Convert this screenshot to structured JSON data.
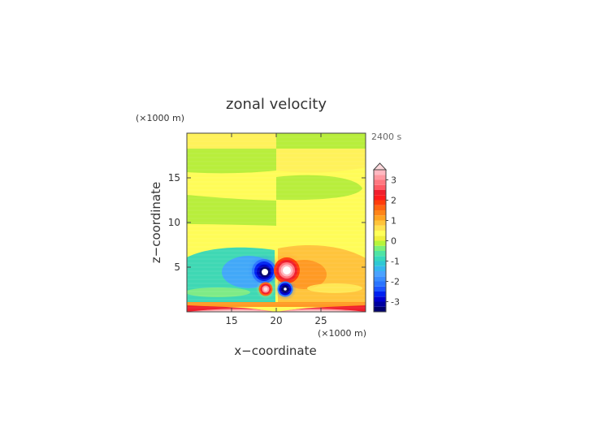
{
  "chart_data": {
    "type": "heatmap",
    "title": "zonal velocity",
    "time_label": "2400 s",
    "xlabel": "x−coordinate",
    "ylabel": "z−coordinate",
    "x_unit": "(×1000 m)",
    "y_unit": "(×1000 m)",
    "xlim": [
      10,
      30
    ],
    "ylim": [
      0,
      20
    ],
    "x_ticks": [
      15,
      20,
      25
    ],
    "y_ticks": [
      5,
      10,
      15
    ],
    "colorbar": {
      "ticks": [
        3,
        2,
        1,
        0,
        -1,
        -2,
        -3
      ],
      "levels": [
        -3.5,
        -3.25,
        -3.0,
        -2.75,
        -2.5,
        -2.25,
        -2.0,
        -1.75,
        -1.5,
        -1.25,
        -1.0,
        -0.75,
        -0.5,
        -0.25,
        0.0,
        0.25,
        0.5,
        0.75,
        1.0,
        1.25,
        1.5,
        1.75,
        2.0,
        2.25,
        2.5,
        2.75,
        3.0,
        3.25,
        3.5
      ],
      "colors": [
        "#00006e",
        "#0000a0",
        "#0000d0",
        "#0020f0",
        "#1c54ff",
        "#2a74ff",
        "#3a8cff",
        "#4aa2ff",
        "#36b6f0",
        "#2ec8d4",
        "#36d8bc",
        "#4ee4a4",
        "#7af07a",
        "#b6f43a",
        "#f0f03c",
        "#ffff58",
        "#ffe250",
        "#ffc43a",
        "#ffa420",
        "#ff8418",
        "#ff6410",
        "#ff3c0a",
        "#ff1a1a",
        "#f01e2c",
        "#ff5a64",
        "#ff7880",
        "#ff98a0",
        "#ffb8c0"
      ],
      "extend": "max"
    },
    "features": [
      {
        "name": "negative vortex upper-left",
        "x": 18.7,
        "z": 4.4,
        "value": -3.5
      },
      {
        "name": "positive vortex upper-right",
        "x": 21.3,
        "z": 4.6,
        "value": 3.5
      },
      {
        "name": "positive vortex lower-left",
        "x": 18.8,
        "z": 2.5,
        "value": 3.0
      },
      {
        "name": "negative vortex lower-right",
        "x": 21.2,
        "z": 2.5,
        "value": -3.5
      }
    ]
  }
}
